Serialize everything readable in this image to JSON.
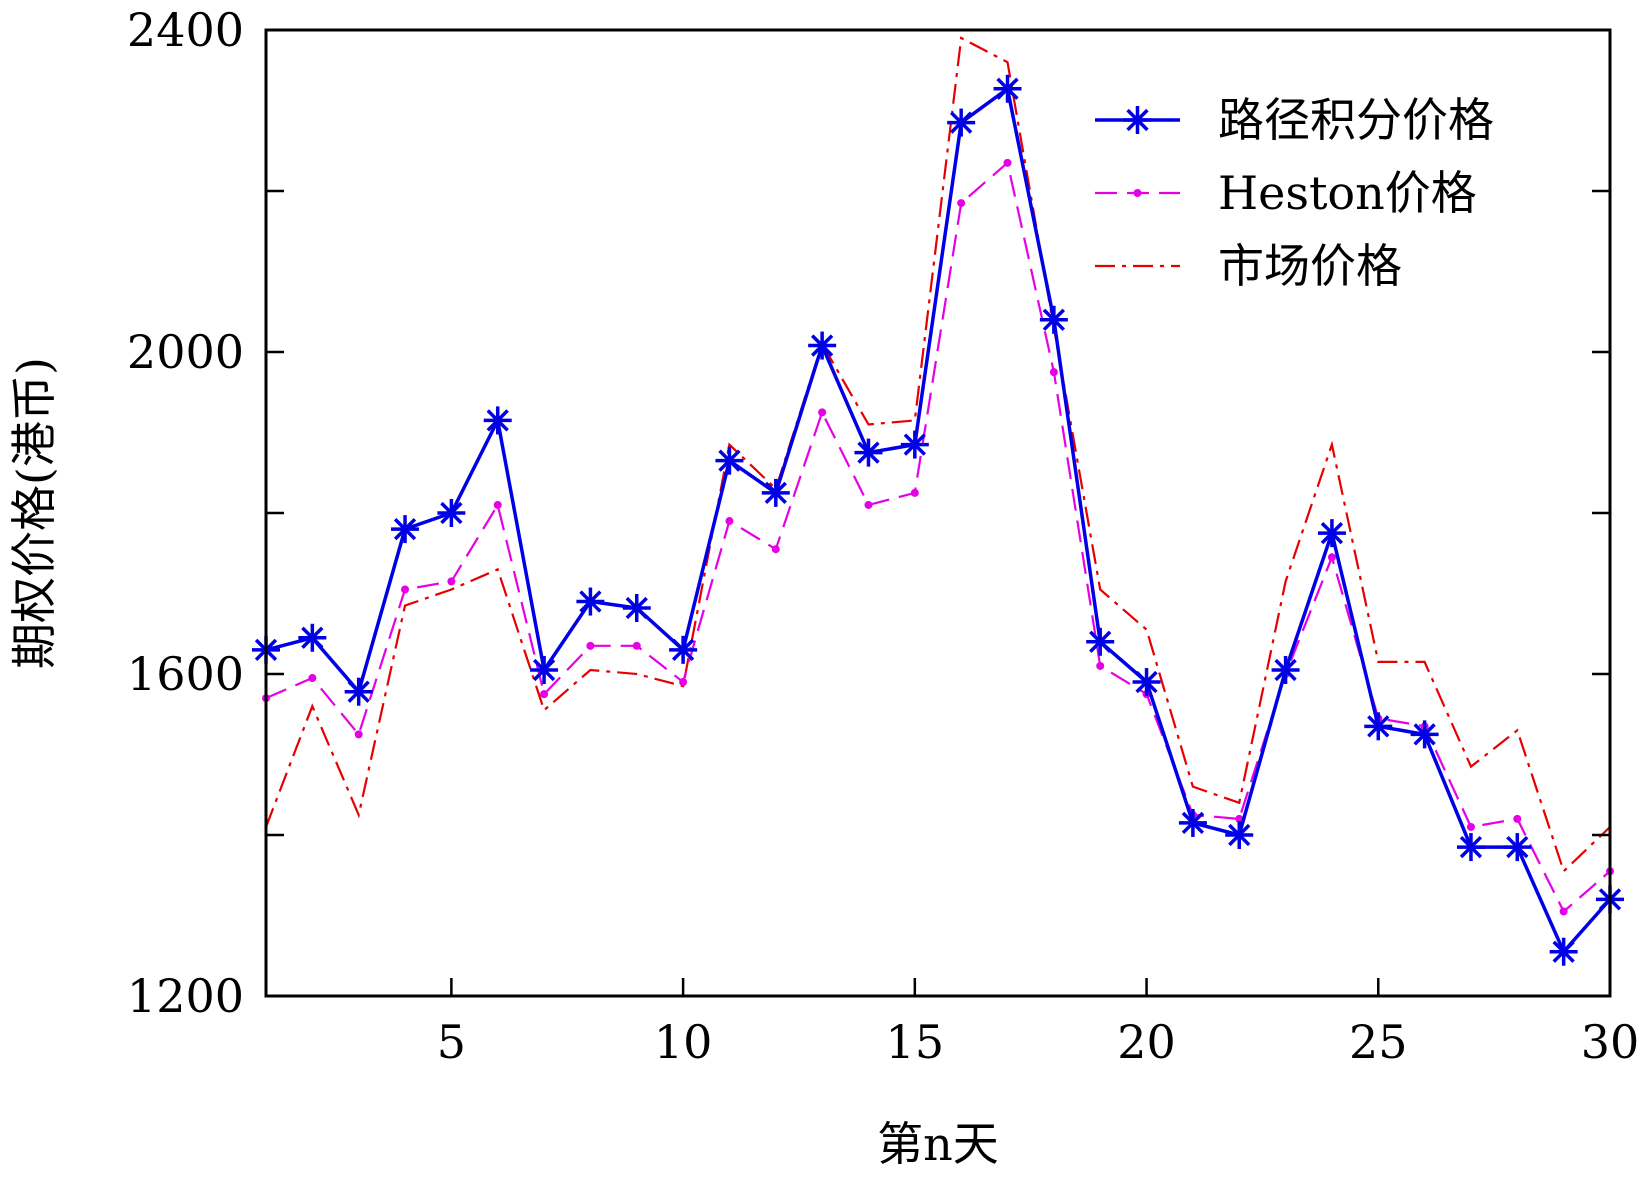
{
  "chart_data": {
    "type": "line",
    "title": "",
    "xlabel": "第n天",
    "ylabel": "期权价格(港币)",
    "xlim": [
      1,
      30
    ],
    "ylim": [
      1200,
      2400
    ],
    "x_ticks": [
      5,
      10,
      15,
      20,
      25,
      30
    ],
    "y_ticks": [
      1200,
      1600,
      2000,
      2400
    ],
    "y_minor_ticks": [
      1400,
      1800,
      2200
    ],
    "legend_position": "top-right",
    "grid": false,
    "x": [
      1,
      2,
      3,
      4,
      5,
      6,
      7,
      8,
      9,
      10,
      11,
      12,
      13,
      14,
      15,
      16,
      17,
      18,
      19,
      20,
      21,
      22,
      23,
      24,
      25,
      26,
      27,
      28,
      29,
      30
    ],
    "series": [
      {
        "name": "路径积分价格",
        "color": "#0000e6",
        "style": "solid",
        "marker": "asterisk",
        "values": [
          1630,
          1645,
          1578,
          1780,
          1800,
          1915,
          1605,
          1690,
          1682,
          1630,
          1865,
          1825,
          2008,
          1875,
          1885,
          2285,
          2327,
          2040,
          1640,
          1590,
          1415,
          1400,
          1605,
          1775,
          1535,
          1525,
          1385,
          1385,
          1255,
          1320
        ]
      },
      {
        "name": "Heston价格",
        "color": "#e600e6",
        "style": "dashed",
        "marker": "dot",
        "values": [
          1570,
          1595,
          1525,
          1705,
          1715,
          1810,
          1575,
          1635,
          1635,
          1590,
          1790,
          1755,
          1925,
          1810,
          1825,
          2185,
          2235,
          1975,
          1610,
          1575,
          1425,
          1420,
          1600,
          1745,
          1545,
          1535,
          1410,
          1420,
          1305,
          1355
        ]
      },
      {
        "name": "市场价格",
        "color": "#e60000",
        "style": "dashdot",
        "marker": "none",
        "values": [
          1410,
          1560,
          1425,
          1685,
          1705,
          1730,
          1555,
          1605,
          1600,
          1585,
          1885,
          1830,
          2010,
          1910,
          1915,
          2390,
          2360,
          2030,
          1705,
          1655,
          1460,
          1440,
          1715,
          1885,
          1615,
          1615,
          1485,
          1530,
          1355,
          1410
        ]
      }
    ]
  }
}
